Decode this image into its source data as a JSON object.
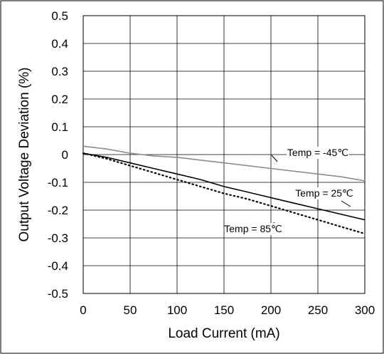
{
  "chart_data": {
    "type": "line",
    "xlabel": "Load Current (mA)",
    "ylabel": "Output Voltage Deviation (%)",
    "xlim": [
      0,
      300
    ],
    "ylim": [
      -0.5,
      0.5
    ],
    "xticks": [
      "0",
      "50",
      "100",
      "150",
      "200",
      "250",
      "300"
    ],
    "yticks": [
      "0.5",
      "0.4",
      "0.3",
      "0.2",
      "0.1",
      "0",
      "-0.1",
      "-0.2",
      "-0.3",
      "-0.4",
      "-0.5"
    ],
    "grid": true,
    "series": [
      {
        "name": "Temp = -45℃",
        "color": "#8c8c8c",
        "style": "solid",
        "x": [
          0,
          25,
          50,
          75,
          100,
          125,
          150,
          175,
          200,
          225,
          250,
          275,
          300
        ],
        "y": [
          0.03,
          0.02,
          0.005,
          -0.005,
          -0.01,
          -0.02,
          -0.03,
          -0.04,
          -0.05,
          -0.06,
          -0.07,
          -0.08,
          -0.095
        ]
      },
      {
        "name": "Temp = 25℃",
        "color": "#000000",
        "style": "solid",
        "x": [
          0,
          25,
          50,
          75,
          100,
          125,
          150,
          175,
          200,
          225,
          250,
          275,
          300
        ],
        "y": [
          0.005,
          -0.01,
          -0.03,
          -0.05,
          -0.07,
          -0.09,
          -0.115,
          -0.135,
          -0.155,
          -0.175,
          -0.195,
          -0.215,
          -0.235
        ]
      },
      {
        "name": "Temp = 85℃",
        "color": "#000000",
        "style": "dotted",
        "x": [
          0,
          25,
          50,
          75,
          100,
          125,
          150,
          175,
          200,
          225,
          250,
          275,
          300
        ],
        "y": [
          0.005,
          -0.015,
          -0.04,
          -0.065,
          -0.09,
          -0.115,
          -0.14,
          -0.16,
          -0.185,
          -0.21,
          -0.235,
          -0.26,
          -0.285
        ]
      }
    ],
    "annotations": [
      {
        "text": "Temp = -45℃",
        "series": 0
      },
      {
        "text": "Temp = 25℃",
        "series": 1
      },
      {
        "text": "Temp = 85℃",
        "series": 2
      }
    ]
  }
}
